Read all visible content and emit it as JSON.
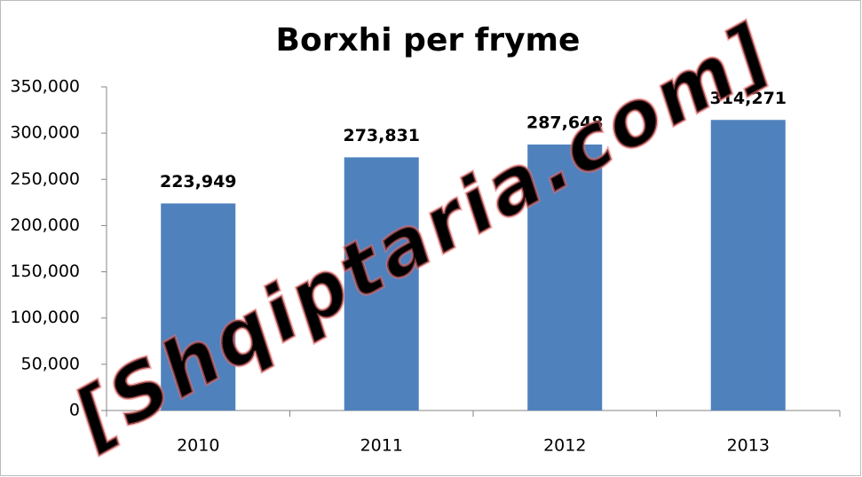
{
  "chart_data": {
    "type": "bar",
    "title": "Borxhi per fryme",
    "categories": [
      "2010",
      "2011",
      "2012",
      "2013"
    ],
    "values": [
      223949,
      273831,
      287648,
      314271
    ],
    "value_labels": [
      "223,949",
      "273,831",
      "287,648",
      "314,271"
    ],
    "color": "#4f81bd",
    "ylim": [
      0,
      350000
    ],
    "yticks": [
      0,
      {
        "value": 50000,
        "label": "50,000"
      },
      {
        "value": 100000,
        "label": "100,000"
      },
      {
        "value": 150000,
        "label": "150,000"
      },
      {
        "value": 200000,
        "label": "200,000"
      },
      {
        "value": 250000,
        "label": "250,000"
      },
      {
        "value": 300000,
        "label": "300,000"
      },
      {
        "value": 350000,
        "label": "350,000"
      }
    ],
    "grid": false,
    "watermark": "[Shqiptaria.com]"
  }
}
